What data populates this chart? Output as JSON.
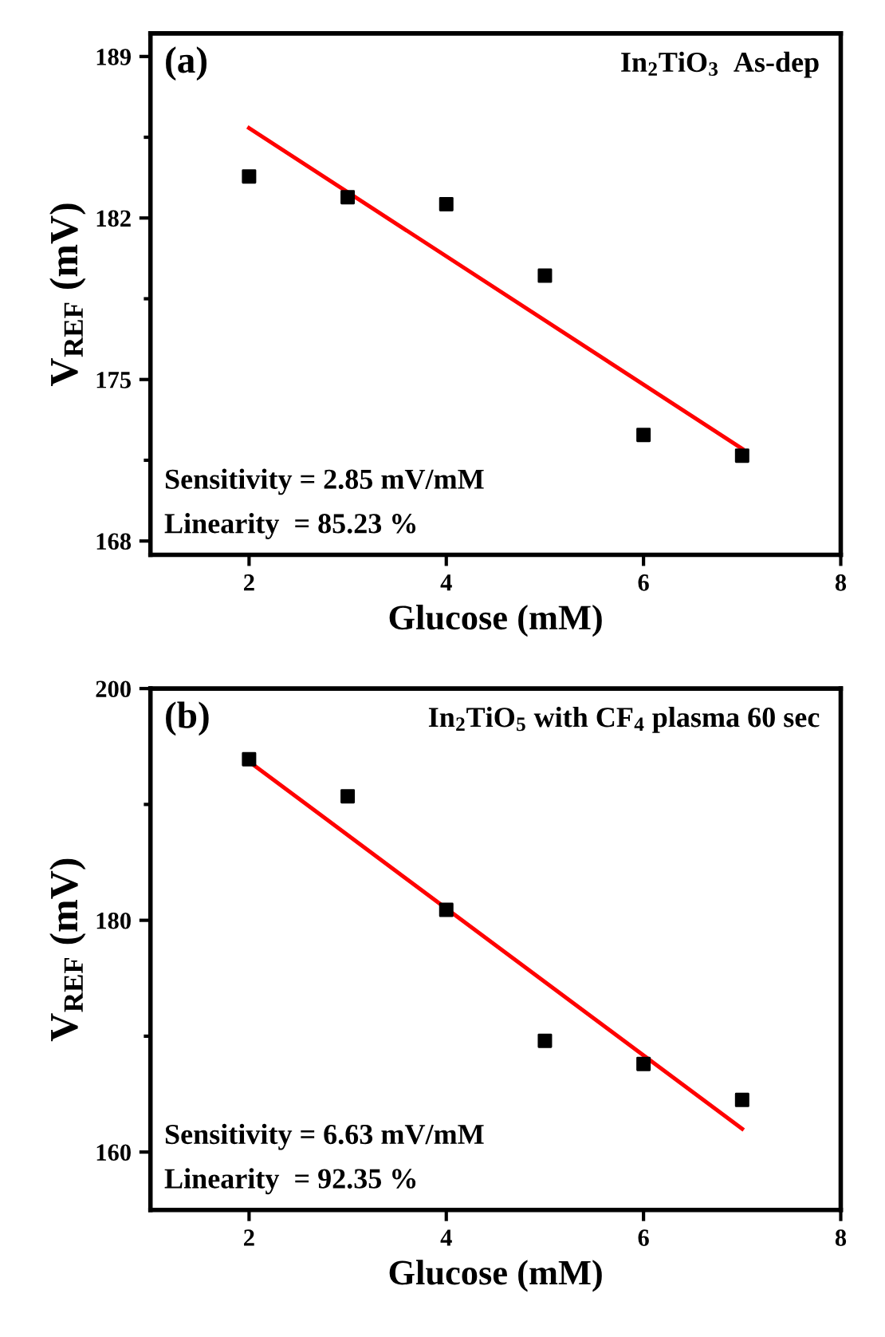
{
  "chart_data": [
    {
      "type": "scatter",
      "title": "(a)",
      "subtitle": "In$_{2}$TiO$_{3}$  As-dep",
      "xlabel": "Glucose (mM)",
      "ylabel": "V$_{REF}$ (mV)",
      "annotations": [
        "Sensitivity = 2.85 mV/mM",
        "Linearity  = 85.23 %"
      ],
      "xlim": [
        1,
        8
      ],
      "xticks": [
        2,
        4,
        6,
        8
      ],
      "ylim": [
        167.4,
        190
      ],
      "yticks": [
        168,
        175,
        182,
        189
      ],
      "grid": false,
      "legend": false,
      "series": [
        {
          "color": "#000000",
          "marker": "square",
          "x": [
            2,
            3,
            4,
            5,
            6,
            7
          ],
          "values": [
            183.8,
            182.9,
            182.6,
            179.5,
            172.6,
            171.7
          ]
        },
        {
          "type": "line",
          "color": "#ff0000",
          "marker": "none",
          "line_style": "solid",
          "x": [
            2,
            7
          ],
          "values": [
            185.9,
            172.0
          ]
        }
      ]
    },
    {
      "type": "scatter",
      "title": "(b)",
      "subtitle": "In$_{2}$TiO$_{5}$ with CF$_{4}$ plasma 60 sec",
      "xlabel": "Glucose (mM)",
      "ylabel": "V$_{REF}$ (mV)",
      "annotations": [
        "Sensitivity = 6.63 mV/mM",
        "Linearity  = 92.35 %"
      ],
      "xlim": [
        1,
        8
      ],
      "xticks": [
        2,
        4,
        6,
        8
      ],
      "ylim": [
        155,
        200
      ],
      "yticks": [
        160,
        180,
        200
      ],
      "grid": false,
      "legend": false,
      "series": [
        {
          "color": "#000000",
          "marker": "square",
          "x": [
            2,
            3,
            4,
            5,
            6,
            7
          ],
          "values": [
            193.9,
            190.7,
            180.9,
            169.6,
            167.6,
            164.5
          ]
        },
        {
          "type": "line",
          "color": "#ff0000",
          "marker": "none",
          "line_style": "solid",
          "x": [
            2,
            7
          ],
          "values": [
            193.7,
            162.0
          ]
        }
      ]
    }
  ]
}
